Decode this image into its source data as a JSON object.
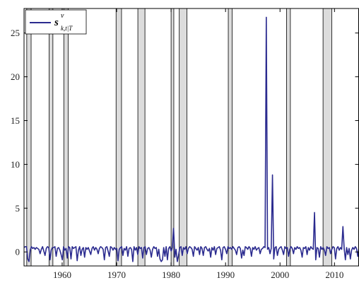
{
  "chart_data": {
    "type": "line",
    "xlim": [
      1953,
      2014.5
    ],
    "ylim": [
      -1.6,
      27.8
    ],
    "xticks": [
      1960,
      1970,
      1980,
      1990,
      2000,
      2010
    ],
    "yticks": [
      0,
      5,
      10,
      15,
      20,
      25
    ],
    "grid": false,
    "legend_placement": "top-left",
    "legend": {
      "main": "s",
      "superscript": "v",
      "subscript": "k,t|T"
    },
    "series_color": "#2b2b8f",
    "shade_color": "#dcdcdc",
    "recessions": [
      [
        1953.5,
        1954.3
      ],
      [
        1957.6,
        1958.3
      ],
      [
        1960.3,
        1961.1
      ],
      [
        1969.9,
        1970.9
      ],
      [
        1973.9,
        1975.2
      ],
      [
        1980.0,
        1980.5
      ],
      [
        1981.5,
        1982.9
      ],
      [
        1990.5,
        1991.2
      ],
      [
        2001.2,
        2001.9
      ],
      [
        2007.9,
        2009.5
      ]
    ],
    "spikes": [
      {
        "x": 1981.25,
        "y": 2.7
      },
      {
        "x": 2000.0,
        "y": 26.8
      },
      {
        "x": 2001.1,
        "y": 8.8
      },
      {
        "x": 2007.75,
        "y": 4.5
      },
      {
        "x": 2012.25,
        "y": 2.9
      }
    ],
    "series": [
      {
        "values": [
          0.5,
          0.6,
          0.6,
          -0.8,
          -1.1,
          0.2,
          0.6,
          0.4,
          0.5,
          0.3,
          0.5,
          0.4,
          0.3,
          -0.2,
          0.3,
          0.6,
          0.1,
          -0.4,
          0.4,
          0.6,
          0.5,
          -0.9,
          0.2,
          0.5,
          0.5,
          0.6,
          -0.5,
          0.4,
          0.5,
          0.2,
          -0.3,
          -0.9,
          0.6,
          0.2,
          0.4,
          -0.7,
          0.6,
          0.5,
          -0.8,
          0.6,
          0.4,
          0.5,
          0.6,
          -1.0,
          0.2,
          0.6,
          -0.4,
          0.3,
          0.5,
          -0.6,
          0.5,
          0.3,
          0.5,
          0.1,
          -0.3,
          0.4,
          0.6,
          0.2,
          0.5,
          0.3,
          -0.2,
          0.4,
          0.6,
          0.5,
          0.3,
          -0.9,
          0.5,
          0.6,
          0.1,
          -0.5,
          0.6,
          0.5,
          0.2,
          0.5,
          0.3,
          0.4,
          -1.0,
          0.3,
          0.5,
          0.6,
          -0.4,
          0.4,
          0.2,
          0.6,
          -0.5,
          0.4,
          0.5,
          0.3,
          -1.1,
          0.6,
          0.2,
          0.5,
          -0.3,
          0.6,
          0.4,
          0.5,
          -0.7,
          0.5,
          0.6,
          -0.3,
          0.4,
          0.5,
          0.2,
          -0.6,
          0.3,
          0.6,
          0.4,
          0.5,
          -0.5,
          0.3,
          -0.8,
          -1.1,
          -0.9,
          0.5,
          -0.5,
          0.6,
          -0.9,
          0.4,
          0.6,
          0.1,
          0.5,
          2.7,
          -0.6,
          0.3,
          -1.1,
          -0.4,
          0.5,
          0.6,
          -0.4,
          0.5,
          0.3,
          0.6,
          -0.2,
          0.4,
          0.6,
          0.5,
          0.3,
          -0.5,
          0.6,
          0.4,
          0.2,
          0.5,
          -0.3,
          0.6,
          0.4,
          -0.4,
          0.5,
          0.6,
          0.3,
          0.1,
          0.4,
          -0.6,
          0.5,
          0.2,
          0.6,
          -0.3,
          0.4,
          0.5,
          0.6,
          0.2,
          -0.9,
          0.5,
          0.6,
          0.3,
          -0.2,
          0.6,
          0.4,
          0.5,
          0.3,
          0.6,
          0.4,
          0.2,
          -0.3,
          0.5,
          0.6,
          0.4,
          -0.7,
          0.2,
          -0.4,
          0.6,
          0.5,
          0.3,
          0.6,
          0.4,
          -0.5,
          0.5,
          0.3,
          0.6,
          0.2,
          0.4,
          0.5,
          -0.2,
          0.3,
          0.4,
          0.6,
          0.5,
          26.8,
          0.3,
          0.5,
          -0.2,
          0.4,
          8.8,
          -0.8,
          0.5,
          0.6,
          -0.4,
          0.3,
          0.5,
          0.6,
          0.2,
          -0.3,
          0.6,
          0.4,
          0.5,
          -0.5,
          0.3,
          0.6,
          0.4,
          -0.2,
          0.5,
          0.3,
          0.6,
          0.4,
          0.5,
          0.2,
          -0.6,
          0.5,
          0.4,
          0.6,
          -0.3,
          0.5,
          0.2,
          0.6,
          0.4,
          0.3,
          4.5,
          -0.9,
          0.5,
          0.4,
          -0.6,
          0.6,
          0.3,
          0.5,
          0.2,
          -0.4,
          0.6,
          0.4,
          0.5,
          -0.2,
          0.3,
          0.6,
          0.5,
          -0.8,
          0.4,
          0.6,
          0.2,
          0.5,
          0.3,
          2.9,
          0.4,
          -0.9,
          0.5,
          -0.3,
          0.4,
          -0.8,
          0.2,
          0.5,
          0.3,
          0.6,
          0.4,
          -0.5,
          0.5
        ]
      }
    ]
  }
}
